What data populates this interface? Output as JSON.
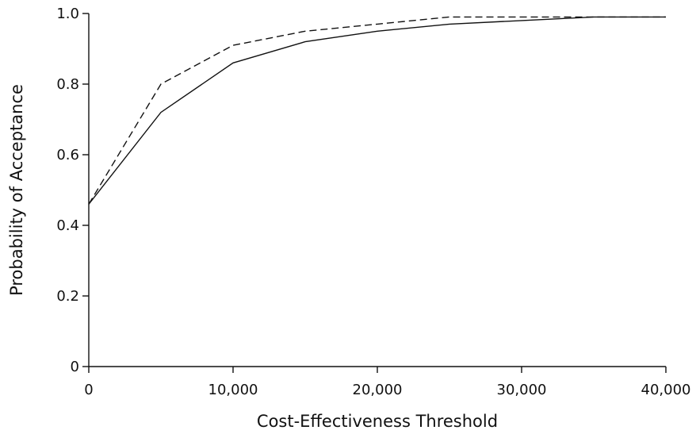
{
  "chart_data": {
    "type": "line",
    "title": "",
    "xlabel": "Cost-Effectiveness Threshold",
    "ylabel": "Probability of Acceptance",
    "xlim": [
      0,
      40000
    ],
    "ylim": [
      0,
      1.0
    ],
    "x_ticks": [
      0,
      10000,
      20000,
      30000,
      40000
    ],
    "x_tick_labels": [
      "0",
      "10,000",
      "20,000",
      "30,000",
      "40,000"
    ],
    "y_ticks": [
      0,
      0.2,
      0.4,
      0.6,
      0.8,
      1.0
    ],
    "y_tick_labels": [
      "0",
      "0.2",
      "0.4",
      "0.6",
      "0.8",
      "1.0"
    ],
    "grid": false,
    "legend": "none",
    "x": [
      0,
      5000,
      10000,
      15000,
      20000,
      25000,
      30000,
      35000,
      40000
    ],
    "series": [
      {
        "style": "solid",
        "color": "#111111",
        "values": [
          0.46,
          0.72,
          0.86,
          0.92,
          0.95,
          0.97,
          0.98,
          0.99,
          0.99
        ]
      },
      {
        "style": "dashed",
        "color": "#111111",
        "values": [
          0.46,
          0.8,
          0.91,
          0.95,
          0.97,
          0.99,
          0.99,
          0.99,
          0.99
        ]
      }
    ]
  }
}
